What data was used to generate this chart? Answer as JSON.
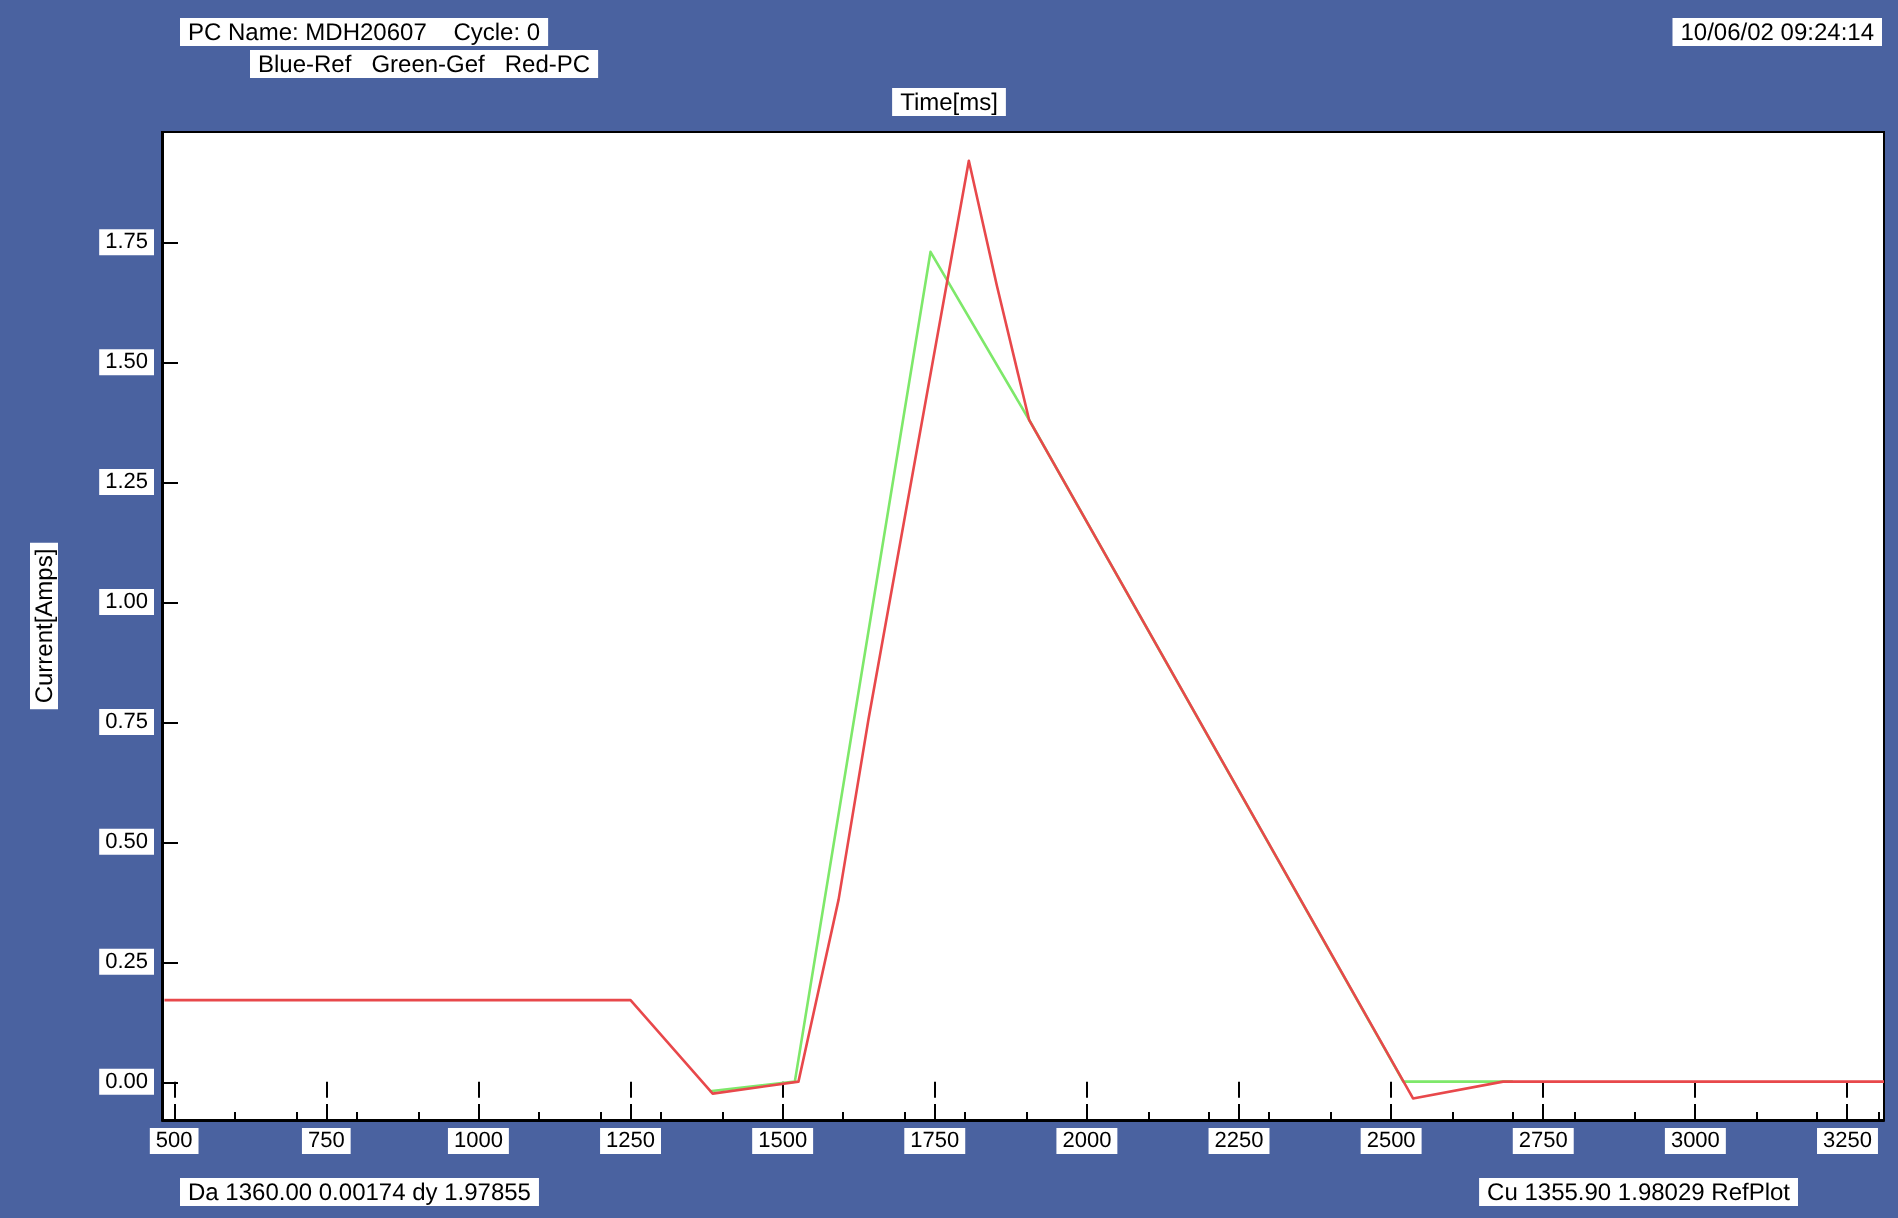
{
  "chart_data": {
    "type": "line",
    "xlabel": "Time[ms]",
    "ylabel": "Current[Amps]",
    "annotations": [
      "PC Name: MDH20607    Cycle: 0",
      "Blue-Ref   Green-Gef   Red-PC",
      "10/06/02 09:24:14",
      "Da 1360.00 0.00174 dy 1.97855",
      "Cu 1355.90 1.98029 RefPlot"
    ],
    "xlim": [
      480,
      3310
    ],
    "xticks": [
      500,
      750,
      1000,
      1250,
      1500,
      1750,
      2000,
      2250,
      2500,
      2750,
      3000,
      3250
    ],
    "ylim": [
      -0.08,
      1.98
    ],
    "yticks": [
      {
        "value": 0,
        "label": "0.00"
      },
      {
        "value": 0.25,
        "label": "0.25"
      },
      {
        "value": 0.5,
        "label": "0.50"
      },
      {
        "value": 0.75,
        "label": "0.75"
      },
      {
        "value": 1,
        "label": "1.00"
      },
      {
        "value": 1.25,
        "label": "1.25"
      },
      {
        "value": 1.5,
        "label": "1.50"
      },
      {
        "value": 1.75,
        "label": "1.75"
      }
    ],
    "grid": false,
    "marker": "none",
    "line_style": "solid",
    "series": [
      {
        "color": "#7ee86a",
        "x": [
          1380,
          1520,
          1743,
          1905,
          2520,
          2700
        ],
        "values": [
          -0.02,
          0.0,
          1.73,
          1.38,
          0.0,
          0.0
        ]
      },
      {
        "color": "#e8484b",
        "x": [
          484,
          1250,
          1385,
          1526,
          1592,
          1641,
          1806,
          1852,
          1905,
          2536,
          2684,
          3310
        ],
        "values": [
          0.17,
          0.17,
          -0.025,
          0,
          0.38,
          0.755,
          1.92,
          1.66,
          1.38,
          -0.035,
          0,
          0
        ]
      }
    ]
  }
}
